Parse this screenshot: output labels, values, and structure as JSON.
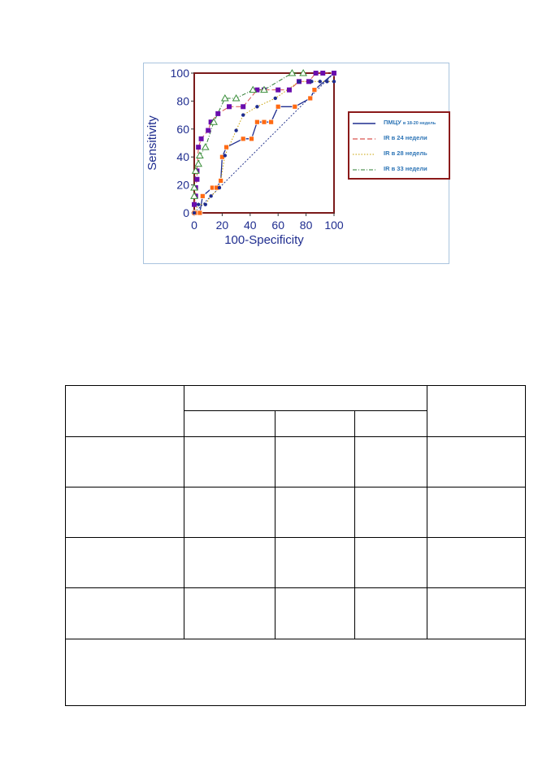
{
  "chart_data": {
    "type": "line",
    "xlabel": "100-Specificity",
    "ylabel": "Sensitivity",
    "xlim": [
      0,
      100
    ],
    "ylim": [
      0,
      100
    ],
    "xticks": [
      "0",
      "20",
      "40",
      "60",
      "80",
      "100"
    ],
    "yticks": [
      "0",
      "20",
      "40",
      "60",
      "80",
      "100"
    ],
    "legend_position": "right",
    "series": [
      {
        "name": "ПМЦУ в 18-20 недель",
        "color": "#ff6a13",
        "line_color": "#1f2d8f",
        "line_style": "solid",
        "marker": "square",
        "x": [
          0,
          2,
          4,
          6,
          13,
          16,
          19,
          20,
          23,
          35,
          41,
          45,
          50,
          55,
          60,
          72,
          83,
          86,
          100
        ],
        "y": [
          0,
          0,
          0,
          12,
          18,
          18,
          23,
          40,
          47,
          53,
          53,
          65,
          65,
          65,
          76,
          76,
          82,
          88,
          100
        ]
      },
      {
        "name": "IR в 24 недели",
        "color": "#6a0dad",
        "line_color": "#d9534f",
        "line_style": "dash",
        "marker": "square",
        "x": [
          0,
          1,
          1,
          2,
          2,
          3,
          5,
          10,
          12,
          17,
          25,
          35,
          45,
          50,
          60,
          68,
          75,
          82,
          87,
          92,
          100
        ],
        "y": [
          6,
          12,
          18,
          24,
          30,
          47,
          53,
          59,
          65,
          71,
          76,
          76,
          88,
          88,
          88,
          88,
          94,
          94,
          100,
          100,
          100
        ]
      },
      {
        "name": "IR в 28 недель",
        "color": "#1f2d8f",
        "line_color": "#c8a000",
        "line_style": "dot",
        "marker": "circle",
        "x": [
          0,
          3,
          8,
          12,
          18,
          22,
          30,
          35,
          45,
          58,
          75,
          84,
          90,
          95,
          100
        ],
        "y": [
          0,
          6,
          6,
          12,
          18,
          41,
          59,
          70,
          76,
          82,
          94,
          94,
          94,
          94,
          94
        ]
      },
      {
        "name": "IR в 33 недели",
        "color": "#3a8f3a",
        "line_color": "#2e7d32",
        "line_style": "dashdot",
        "marker": "triangle",
        "x": [
          0,
          0,
          1,
          3,
          4,
          8,
          14,
          22,
          30,
          42,
          50,
          70,
          78
        ],
        "y": [
          12,
          18,
          30,
          35,
          41,
          47,
          65,
          82,
          82,
          88,
          88,
          100,
          100
        ]
      }
    ],
    "reference_line": {
      "x": [
        0,
        100
      ],
      "y": [
        0,
        100
      ],
      "color": "#2b3a8f",
      "style": "dot"
    }
  },
  "table": {
    "rows": [
      [
        "",
        "",
        "",
        "",
        ""
      ],
      [
        "",
        "",
        "",
        ""
      ],
      [
        "",
        "",
        "",
        "",
        ""
      ],
      [
        "",
        "",
        "",
        "",
        ""
      ],
      [
        "",
        "",
        "",
        "",
        ""
      ],
      [
        "",
        "",
        "",
        "",
        ""
      ],
      [
        ""
      ]
    ]
  }
}
